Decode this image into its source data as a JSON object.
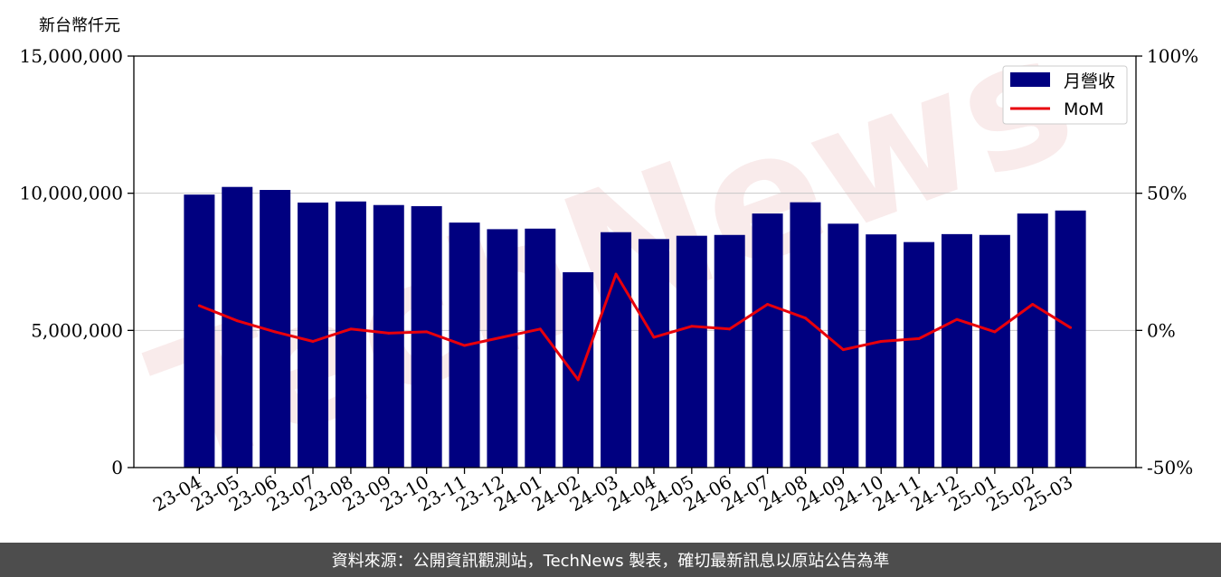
{
  "footer": {
    "source_note": "資料來源：公開資訊觀測站，TechNews 製表，確切最新訊息以原站公告為準"
  },
  "chart_data": {
    "type": "bar",
    "title": "",
    "y_unit": "新台幣仟元",
    "categories": [
      "23-04",
      "23-05",
      "23-06",
      "23-07",
      "23-08",
      "23-09",
      "23-10",
      "23-11",
      "23-12",
      "24-01",
      "24-02",
      "24-03",
      "24-04",
      "24-05",
      "24-06",
      "24-07",
      "24-08",
      "24-09",
      "24-10",
      "24-11",
      "24-12",
      "25-01",
      "25-02",
      "25-03"
    ],
    "series": [
      {
        "name": "月營收",
        "type": "bar",
        "axis": "left",
        "color": "#000080",
        "values": [
          9950000,
          10230000,
          10120000,
          9660000,
          9700000,
          9570000,
          9530000,
          8930000,
          8690000,
          8710000,
          7120000,
          8580000,
          8330000,
          8450000,
          8480000,
          9260000,
          9670000,
          8890000,
          8500000,
          8220000,
          8510000,
          8480000,
          9260000,
          9370000
        ]
      },
      {
        "name": "MoM",
        "type": "line",
        "axis": "right",
        "color": "#e8000b",
        "values": [
          9.0,
          3.5,
          -0.5,
          -4.0,
          0.5,
          -1.0,
          -0.5,
          -5.5,
          -2.5,
          0.5,
          -18.0,
          20.5,
          -2.5,
          1.5,
          0.5,
          9.5,
          4.5,
          -7.0,
          -4.0,
          -3.0,
          4.0,
          -0.5,
          9.5,
          1.0
        ]
      }
    ],
    "y_left": {
      "min": 0,
      "max": 15000000,
      "ticks": [
        "0",
        "5,000,000",
        "10,000,000",
        "15,000,000"
      ],
      "tick_values": [
        0,
        5000000,
        10000000,
        15000000
      ]
    },
    "y_right": {
      "min": -50,
      "max": 100,
      "ticks": [
        "-50%",
        "0%",
        "50%",
        "100%"
      ],
      "tick_values": [
        -50,
        0,
        50,
        100
      ]
    },
    "grid": "horizontal",
    "legend": {
      "placement": "top-right",
      "entries": [
        "月營收",
        "MoM"
      ]
    },
    "watermark": "TechNews"
  }
}
